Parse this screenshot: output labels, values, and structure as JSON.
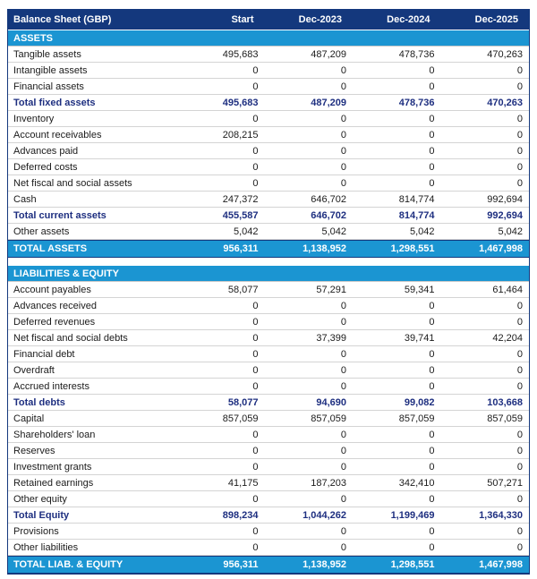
{
  "title": "Balance Sheet (GBP)",
  "colors": {
    "header_bg": "#14387d",
    "section_bg": "#1b95d2",
    "total_bg": "#1b95d2",
    "subtotal_text": "#1e2f80",
    "body_text": "#1b1b1b",
    "row_border": "#d4d4d4",
    "outer_border": "#14387d"
  },
  "chart_data": {
    "type": "table",
    "title": "Balance Sheet (GBP)",
    "columns": [
      "Start",
      "Dec-2023",
      "Dec-2024",
      "Dec-2025"
    ],
    "sections": [
      {
        "header": "ASSETS",
        "rows": [
          {
            "label": "Tangible assets",
            "values": [
              "495,683",
              "487,209",
              "478,736",
              "470,263"
            ],
            "style": "normal"
          },
          {
            "label": "Intangible assets",
            "values": [
              "0",
              "0",
              "0",
              "0"
            ],
            "style": "normal"
          },
          {
            "label": "Financial assets",
            "values": [
              "0",
              "0",
              "0",
              "0"
            ],
            "style": "normal"
          },
          {
            "label": "Total fixed assets",
            "values": [
              "495,683",
              "487,209",
              "478,736",
              "470,263"
            ],
            "style": "subtotal"
          },
          {
            "label": "Inventory",
            "values": [
              "0",
              "0",
              "0",
              "0"
            ],
            "style": "normal"
          },
          {
            "label": "Account receivables",
            "values": [
              "208,215",
              "0",
              "0",
              "0"
            ],
            "style": "normal"
          },
          {
            "label": "Advances paid",
            "values": [
              "0",
              "0",
              "0",
              "0"
            ],
            "style": "normal"
          },
          {
            "label": "Deferred costs",
            "values": [
              "0",
              "0",
              "0",
              "0"
            ],
            "style": "normal"
          },
          {
            "label": "Net fiscal and social assets",
            "values": [
              "0",
              "0",
              "0",
              "0"
            ],
            "style": "normal"
          },
          {
            "label": "Cash",
            "values": [
              "247,372",
              "646,702",
              "814,774",
              "992,694"
            ],
            "style": "normal"
          },
          {
            "label": "Total current assets",
            "values": [
              "455,587",
              "646,702",
              "814,774",
              "992,694"
            ],
            "style": "subtotal"
          },
          {
            "label": "Other assets",
            "values": [
              "5,042",
              "5,042",
              "5,042",
              "5,042"
            ],
            "style": "normal"
          }
        ],
        "total": {
          "label": "TOTAL ASSETS",
          "values": [
            "956,311",
            "1,138,952",
            "1,298,551",
            "1,467,998"
          ]
        }
      },
      {
        "header": "LIABILITIES & EQUITY",
        "rows": [
          {
            "label": "Account payables",
            "values": [
              "58,077",
              "57,291",
              "59,341",
              "61,464"
            ],
            "style": "normal"
          },
          {
            "label": "Advances received",
            "values": [
              "0",
              "0",
              "0",
              "0"
            ],
            "style": "normal"
          },
          {
            "label": "Deferred revenues",
            "values": [
              "0",
              "0",
              "0",
              "0"
            ],
            "style": "normal"
          },
          {
            "label": "Net fiscal and social debts",
            "values": [
              "0",
              "37,399",
              "39,741",
              "42,204"
            ],
            "style": "normal"
          },
          {
            "label": "Financial debt",
            "values": [
              "0",
              "0",
              "0",
              "0"
            ],
            "style": "normal"
          },
          {
            "label": "Overdraft",
            "values": [
              "0",
              "0",
              "0",
              "0"
            ],
            "style": "normal"
          },
          {
            "label": "Accrued interests",
            "values": [
              "0",
              "0",
              "0",
              "0"
            ],
            "style": "normal"
          },
          {
            "label": "Total debts",
            "values": [
              "58,077",
              "94,690",
              "99,082",
              "103,668"
            ],
            "style": "subtotal"
          },
          {
            "label": "Capital",
            "values": [
              "857,059",
              "857,059",
              "857,059",
              "857,059"
            ],
            "style": "normal"
          },
          {
            "label": "Shareholders' loan",
            "values": [
              "0",
              "0",
              "0",
              "0"
            ],
            "style": "normal"
          },
          {
            "label": "Reserves",
            "values": [
              "0",
              "0",
              "0",
              "0"
            ],
            "style": "normal"
          },
          {
            "label": "Investment grants",
            "values": [
              "0",
              "0",
              "0",
              "0"
            ],
            "style": "normal"
          },
          {
            "label": "Retained earnings",
            "values": [
              "41,175",
              "187,203",
              "342,410",
              "507,271"
            ],
            "style": "normal"
          },
          {
            "label": "Other equity",
            "values": [
              "0",
              "0",
              "0",
              "0"
            ],
            "style": "normal"
          },
          {
            "label": "Total Equity",
            "values": [
              "898,234",
              "1,044,262",
              "1,199,469",
              "1,364,330"
            ],
            "style": "subtotal"
          },
          {
            "label": "Provisions",
            "values": [
              "0",
              "0",
              "0",
              "0"
            ],
            "style": "normal"
          },
          {
            "label": "Other liabilities",
            "values": [
              "0",
              "0",
              "0",
              "0"
            ],
            "style": "normal"
          }
        ],
        "total": {
          "label": "TOTAL LIAB. & EQUITY",
          "values": [
            "956,311",
            "1,138,952",
            "1,298,551",
            "1,467,998"
          ]
        }
      }
    ]
  }
}
